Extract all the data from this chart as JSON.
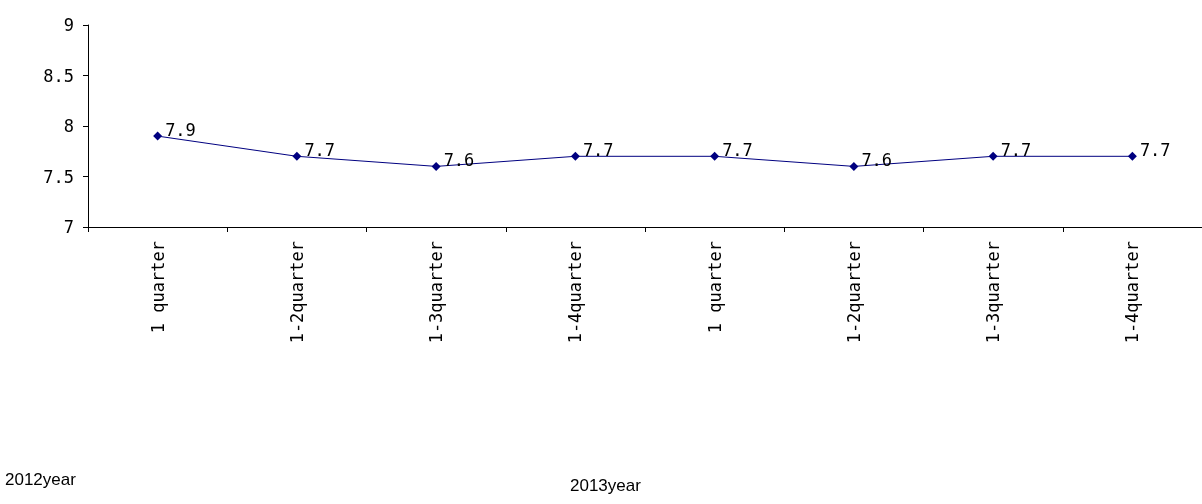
{
  "chart_data": {
    "type": "line",
    "categories": [
      "1 quarter",
      "1-2quarter",
      "1-3quarter",
      "1-4quarter",
      "1 quarter",
      "1-2quarter",
      "1-3quarter",
      "1-4quarter"
    ],
    "series": [
      {
        "color": "#000080",
        "values": [
          7.9,
          7.7,
          7.6,
          7.7,
          7.7,
          7.6,
          7.7,
          7.7
        ]
      }
    ],
    "ylim": [
      7,
      9
    ],
    "yticks": [
      7,
      7.5,
      8,
      8.5,
      9
    ],
    "data_labels": true,
    "marker": "diamond",
    "line_style": "solid",
    "grid": false,
    "annotations": [
      "2012year",
      "2013year"
    ]
  }
}
